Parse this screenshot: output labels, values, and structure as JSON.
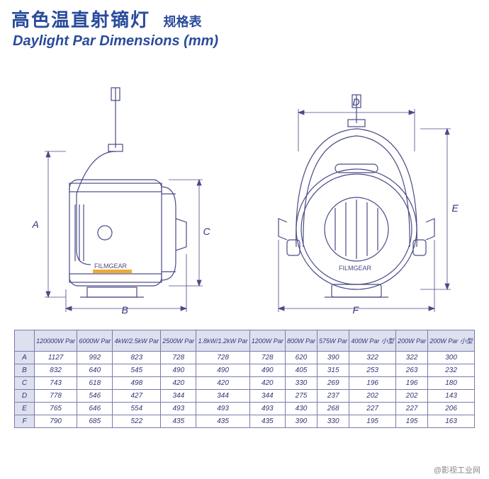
{
  "title": {
    "cn": "高色温直射镝灯",
    "sub": "规格表",
    "en": "Daylight Par Dimensions (mm)"
  },
  "labels": {
    "A": "A",
    "B": "B",
    "C": "C",
    "D": "D",
    "E": "E",
    "F": "F"
  },
  "table": {
    "columns": [
      "",
      "120000W Par",
      "6000W Par",
      "4kW/2.5kW Par",
      "2500W Par",
      "1.8kW/1.2kW Par",
      "1200W Par",
      "800W Par",
      "575W Par",
      "400W Par 小型",
      "200W Par",
      "200W Par 小型"
    ],
    "rows": [
      [
        "A",
        "1127",
        "992",
        "823",
        "728",
        "728",
        "728",
        "620",
        "390",
        "322",
        "322",
        "300"
      ],
      [
        "B",
        "832",
        "640",
        "545",
        "490",
        "490",
        "490",
        "405",
        "315",
        "253",
        "263",
        "232"
      ],
      [
        "C",
        "743",
        "618",
        "498",
        "420",
        "420",
        "420",
        "330",
        "269",
        "196",
        "196",
        "180"
      ],
      [
        "D",
        "778",
        "546",
        "427",
        "344",
        "344",
        "344",
        "275",
        "237",
        "202",
        "202",
        "143"
      ],
      [
        "E",
        "765",
        "646",
        "554",
        "493",
        "493",
        "493",
        "430",
        "268",
        "227",
        "227",
        "206"
      ],
      [
        "F",
        "790",
        "685",
        "522",
        "435",
        "435",
        "435",
        "390",
        "330",
        "195",
        "195",
        "163"
      ]
    ],
    "header_bg": "#dde0ee",
    "border_color": "#7a7aae",
    "text_color": "#33337a"
  },
  "colors": {
    "title": "#2a4b9b",
    "line": "#4a4a88",
    "light_fill": "#ffffff"
  },
  "brand": "FILMGEAR",
  "watermark": "@影视工业网"
}
